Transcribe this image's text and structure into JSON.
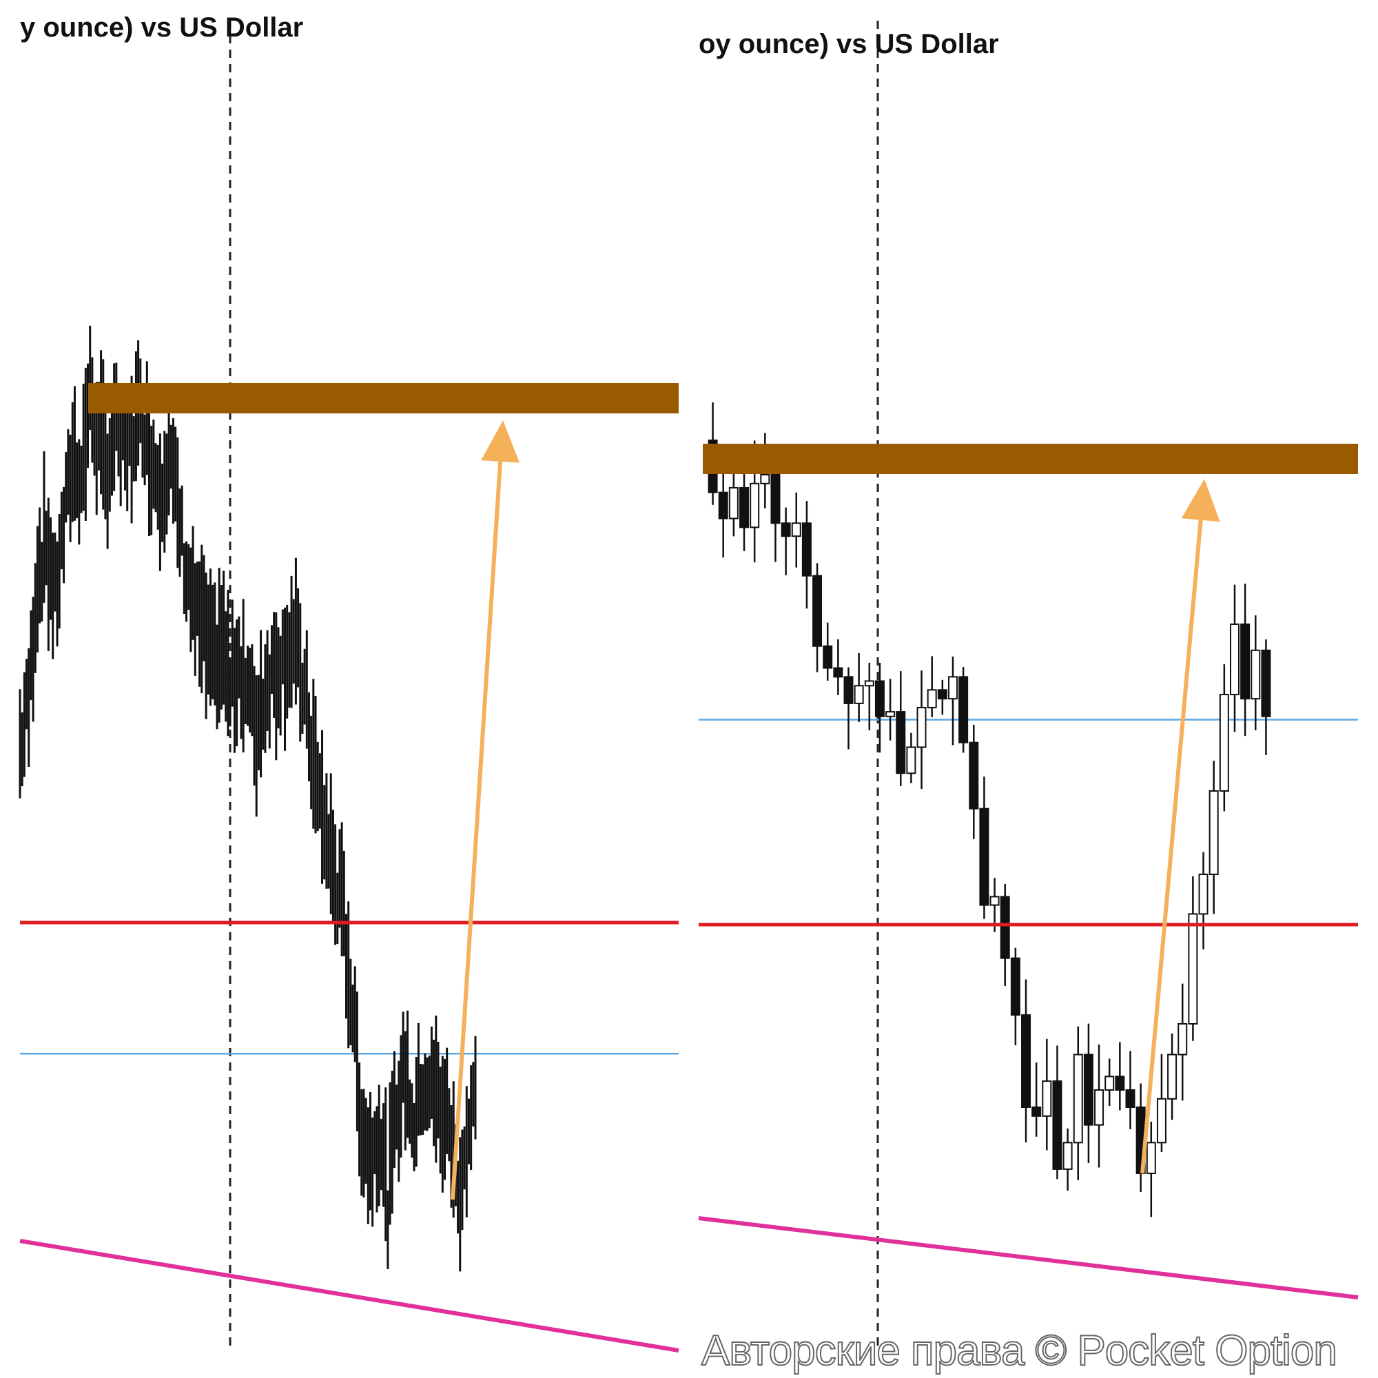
{
  "chart_data": [
    {
      "type": "bar",
      "style": "ohlc-bars",
      "title": "y ounce) vs US Dollar",
      "levels_scale": "relative",
      "closes": [
        33.5,
        41.9,
        67,
        72,
        62,
        75.4,
        88.8,
        85.4,
        100.5,
        92,
        87,
        93.8,
        88.8,
        93.8,
        97,
        88.8,
        83.8,
        88.8,
        78.7,
        67,
        58.6,
        55.3,
        48.6,
        53.6,
        45.2,
        50.3,
        43.6,
        36.9,
        45.2,
        48.6,
        50.3,
        53.6,
        48.6,
        36.9,
        25.1,
        16.8,
        8.4,
        0,
        -16.8,
        -38.5,
        -45.2,
        -38.5,
        -53.6,
        -35.2,
        -28.5,
        -38.5,
        -30.2,
        -31.8,
        -35.2,
        -38.5,
        -51.9,
        -41.9,
        -33.5
      ],
      "resistance_zone_level": 100,
      "red_line_level": 0,
      "blue_line_level": -25,
      "grid": false
    },
    {
      "type": "bar",
      "style": "candlestick",
      "title": "oy ounce) vs US Dollar",
      "first_open": 104,
      "closes": [
        92.8,
        87.2,
        93.8,
        85.3,
        94.7,
        96.6,
        86.2,
        83.4,
        86.2,
        74.9,
        59.8,
        55.1,
        53.2,
        47.5,
        51.3,
        52.3,
        44.7,
        45.7,
        32.5,
        38.1,
        46.6,
        50.4,
        48.5,
        53.2,
        39.1,
        24.9,
        4.2,
        6,
        -7.2,
        -19.4,
        -39.2,
        -41.1,
        -33.6,
        -52.5,
        -46.8,
        -27.9,
        -43,
        -35.5,
        -32.6,
        -35.5,
        -39.2,
        -53.4,
        -46.8,
        -37.4,
        -27.9,
        -21.3,
        2.3,
        10.8,
        28.7,
        49.4,
        64.5,
        48.5,
        58.9,
        44.7
      ],
      "resistance_zone_level": 100,
      "red_line_level": 0,
      "blue_line_level": 44,
      "grid": false
    }
  ],
  "colors": {
    "zone": "#9a5a00",
    "red": "#e01b22",
    "blue": "#5aa8e6",
    "magenta": "#e0309a",
    "arrow": "#f4b15a",
    "bar": "#111111"
  },
  "watermark": "Авторские права © Pocket Option"
}
